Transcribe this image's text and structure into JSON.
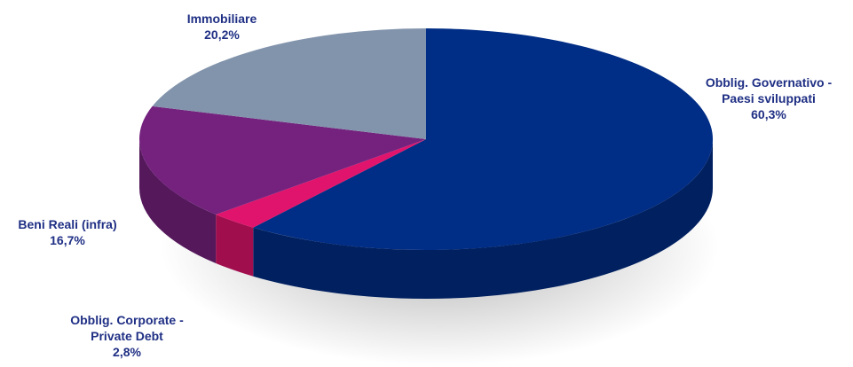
{
  "chart_data": {
    "type": "pie",
    "style": "3d",
    "title": "",
    "slices": [
      {
        "name": "Obblig. Governativo - Paesi sviluppati",
        "lines": [
          "Obblig. Governativo  -",
          "Paesi sviluppati"
        ],
        "value": 60.3,
        "label": "60,3%",
        "color": "#002d85"
      },
      {
        "name": "Obblig. Corporate - Private Debt",
        "lines": [
          "Obblig. Corporate -",
          "Private Debt"
        ],
        "value": 2.8,
        "label": "2,8%",
        "color": "#e0146c"
      },
      {
        "name": "Beni Reali (infra)",
        "lines": [
          "Beni Reali (infra)"
        ],
        "value": 16.7,
        "label": "16,7%",
        "color": "#74227e"
      },
      {
        "name": "Immobiliare",
        "lines": [
          "Immobiliare"
        ],
        "value": 20.2,
        "label": "20,2%",
        "color": "#8294ac"
      }
    ]
  }
}
